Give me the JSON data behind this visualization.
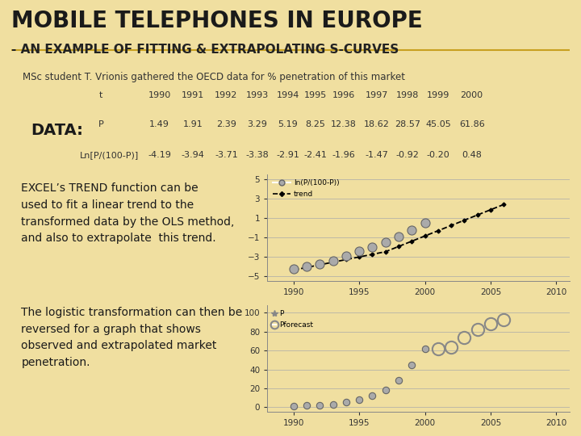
{
  "bg_color": "#f0dfa0",
  "title": "MOBILE TELEPHONES IN EUROPE",
  "subtitle": "- AN EXAMPLE OF FITTING & EXTRAPOLATING S-CURVES",
  "msc_text": "MSc student T. Vrionis gathered the OECD data for % penetration of this market",
  "data_label": "DATA:",
  "years_data": [
    1990,
    1991,
    1992,
    1993,
    1994,
    1995,
    1996,
    1997,
    1998,
    1999,
    2000
  ],
  "P_values": [
    1.49,
    1.91,
    2.39,
    3.29,
    5.19,
    8.25,
    12.38,
    18.62,
    28.57,
    45.05,
    61.86
  ],
  "lnP_values": [
    -4.19,
    -3.94,
    -3.71,
    -3.38,
    -2.91,
    -2.41,
    -1.96,
    -1.47,
    -0.92,
    -0.2,
    0.48
  ],
  "trend_years": [
    1990,
    1991,
    1992,
    1993,
    1994,
    1995,
    1996,
    1997,
    1998,
    1999,
    2000,
    2001,
    2002,
    2003,
    2004,
    2005,
    2006
  ],
  "trend_values": [
    -4.35,
    -4.08,
    -3.81,
    -3.54,
    -3.27,
    -3.0,
    -2.73,
    -2.46,
    -1.92,
    -1.38,
    -0.84,
    -0.3,
    0.24,
    0.78,
    1.32,
    1.86,
    2.4
  ],
  "forecast_years": [
    2001,
    2002,
    2003,
    2004,
    2005,
    2006
  ],
  "forecast_P": [
    61.5,
    63.5,
    74.0,
    82.0,
    88.0,
    93.0
  ],
  "table_row_t": [
    "t",
    "1990",
    "1991",
    "1992",
    "1993",
    "1994",
    "1995",
    "1996",
    "1997",
    "1998",
    "1999",
    "2000"
  ],
  "table_row_P": [
    "P",
    "1.49",
    "1.91",
    "2.39",
    "3.29",
    "5.19",
    "8.25",
    "12.38",
    "18.62",
    "28.57",
    "45.05",
    "61.86"
  ],
  "table_row_ln": [
    "Ln[P/(100-P)]",
    "-4.19",
    "-3.94",
    "-3.71",
    "-3.38",
    "-2.91",
    "-2.41",
    "-1.96",
    "-1.47",
    "-0.92",
    "-0.20",
    "0.48"
  ],
  "text_excel": "EXCEL’s TREND function can be\nused to fit a linear trend to the\ntransformed data by the OLS method,\nand also to extrapolate  this trend.",
  "text_logistic": "The logistic transformation can then be\nreversed for a graph that shows\nobserved and extrapolated market\npenetration."
}
